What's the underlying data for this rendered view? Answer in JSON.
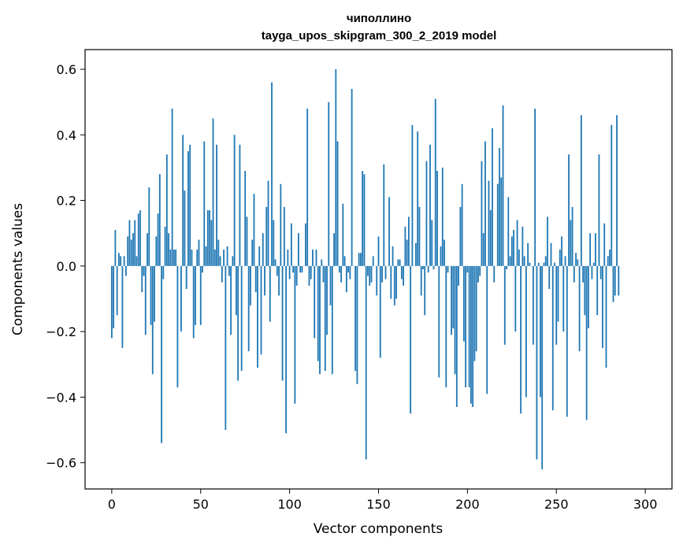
{
  "chart_data": {
    "type": "bar",
    "title": "чиполлино",
    "subtitle": "tayga_upos_skipgram_300_2_2019 model",
    "xlabel": "Vector components",
    "ylabel": "Components values",
    "xlim": [
      -15,
      315
    ],
    "ylim": [
      -0.68,
      0.66
    ],
    "xticks": [
      0,
      50,
      100,
      150,
      200,
      250,
      300
    ],
    "xtick_labels": [
      "0",
      "50",
      "100",
      "150",
      "200",
      "250",
      "300"
    ],
    "yticks": [
      -0.6,
      -0.4,
      -0.2,
      0.0,
      0.2,
      0.4,
      0.6
    ],
    "ytick_labels": [
      "−0.6",
      "−0.4",
      "−0.2",
      "0.0",
      "0.2",
      "0.4",
      "0.6"
    ],
    "bar_color": "#1f77b4",
    "values": [
      -0.22,
      -0.19,
      0.11,
      -0.15,
      0.04,
      0.03,
      -0.25,
      0.03,
      -0.03,
      0.09,
      0.14,
      0.08,
      0.1,
      0.14,
      0.03,
      0.16,
      0.17,
      -0.08,
      -0.03,
      -0.21,
      0.1,
      0.24,
      -0.18,
      -0.33,
      -0.17,
      0.09,
      0.16,
      0.28,
      -0.54,
      -0.04,
      0.12,
      0.34,
      0.1,
      0.05,
      0.48,
      0.05,
      0.05,
      -0.37,
      0.0,
      -0.2,
      0.4,
      0.23,
      -0.07,
      0.35,
      0.37,
      0.05,
      -0.22,
      -0.18,
      0.05,
      0.08,
      -0.18,
      -0.02,
      0.38,
      0.06,
      0.17,
      0.17,
      0.14,
      0.45,
      0.05,
      0.37,
      0.08,
      0.03,
      -0.05,
      0.05,
      -0.5,
      0.06,
      -0.03,
      -0.21,
      0.03,
      0.4,
      -0.15,
      -0.35,
      0.37,
      -0.32,
      0.0,
      0.29,
      0.15,
      -0.26,
      -0.12,
      0.08,
      0.22,
      -0.08,
      -0.31,
      0.06,
      -0.27,
      0.1,
      -0.09,
      0.18,
      0.26,
      -0.17,
      0.56,
      0.14,
      0.02,
      -0.03,
      -0.09,
      0.25,
      -0.35,
      0.18,
      -0.51,
      0.05,
      -0.04,
      0.13,
      -0.02,
      -0.42,
      -0.06,
      0.1,
      -0.02,
      -0.02,
      0.0,
      0.13,
      0.48,
      -0.06,
      -0.04,
      0.05,
      -0.22,
      0.05,
      -0.29,
      -0.33,
      0.02,
      -0.05,
      -0.32,
      -0.21,
      0.5,
      -0.12,
      -0.33,
      0.1,
      0.6,
      0.38,
      -0.02,
      -0.05,
      0.19,
      0.03,
      -0.08,
      -0.02,
      -0.04,
      0.54,
      0.0,
      -0.32,
      -0.36,
      0.04,
      0.04,
      0.29,
      0.28,
      -0.59,
      -0.03,
      -0.06,
      -0.05,
      0.03,
      0.0,
      -0.09,
      0.09,
      -0.28,
      -0.05,
      0.31,
      -0.04,
      0.0,
      0.21,
      -0.1,
      0.06,
      -0.12,
      -0.1,
      0.02,
      0.02,
      -0.04,
      -0.06,
      0.12,
      0.08,
      0.15,
      -0.45,
      0.43,
      0.0,
      0.07,
      0.41,
      0.18,
      -0.09,
      -0.01,
      -0.15,
      0.32,
      -0.02,
      0.37,
      0.14,
      -0.01,
      0.51,
      0.29,
      -0.34,
      0.06,
      0.3,
      0.08,
      -0.37,
      -0.02,
      0.0,
      -0.21,
      -0.19,
      -0.33,
      -0.43,
      -0.06,
      0.18,
      0.25,
      -0.23,
      -0.37,
      -0.02,
      -0.37,
      -0.42,
      -0.43,
      -0.29,
      -0.26,
      -0.05,
      -0.03,
      0.32,
      0.1,
      0.38,
      -0.39,
      0.26,
      0.17,
      0.42,
      -0.05,
      0.0,
      0.25,
      0.36,
      0.27,
      0.49,
      -0.24,
      -0.01,
      0.21,
      0.03,
      0.09,
      0.11,
      -0.2,
      0.14,
      0.05,
      -0.45,
      0.12,
      0.03,
      -0.4,
      0.07,
      0.01,
      0.0,
      -0.24,
      0.48,
      -0.59,
      0.01,
      -0.4,
      -0.62,
      0.01,
      0.03,
      0.15,
      -0.07,
      0.07,
      -0.44,
      0.01,
      -0.24,
      -0.17,
      0.05,
      0.09,
      -0.2,
      0.03,
      -0.46,
      0.34,
      0.14,
      0.18,
      -0.05,
      0.04,
      0.02,
      -0.26,
      0.46,
      -0.05,
      -0.15,
      -0.47,
      -0.19,
      0.1,
      -0.04,
      0.01,
      0.1,
      -0.15,
      0.34,
      -0.04,
      -0.25,
      0.13,
      -0.31,
      0.03,
      0.05,
      0.43,
      -0.11,
      -0.09,
      0.46,
      -0.09
    ]
  }
}
